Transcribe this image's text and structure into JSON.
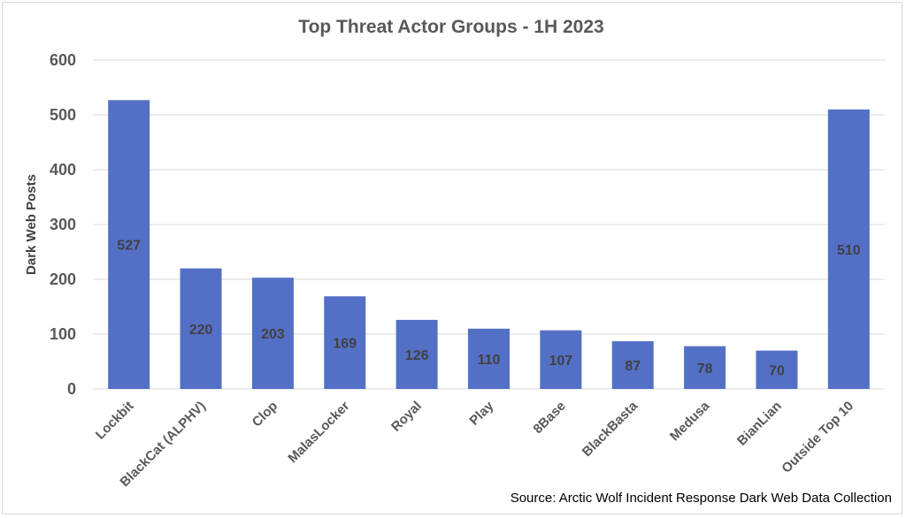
{
  "chart_data": {
    "type": "bar",
    "title": "Top Threat Actor Groups - 1H 2023",
    "xlabel": "",
    "ylabel": "Dark Web Posts",
    "ylim": [
      0,
      600
    ],
    "yticks": [
      0,
      100,
      200,
      300,
      400,
      500,
      600
    ],
    "grid": true,
    "categories": [
      "Lockbit",
      "BlackCat (ALPHV)",
      "Clop",
      "MalasLocker",
      "Royal",
      "Play",
      "8Base",
      "BlackBasta",
      "Medusa",
      "BianLian",
      "Outside Top 10"
    ],
    "values": [
      527,
      220,
      203,
      169,
      126,
      110,
      107,
      87,
      78,
      70,
      510
    ],
    "bar_color": "#5470C6",
    "source_note": "Source: Arctic Wolf Incident Response Dark Web Data Collection"
  }
}
